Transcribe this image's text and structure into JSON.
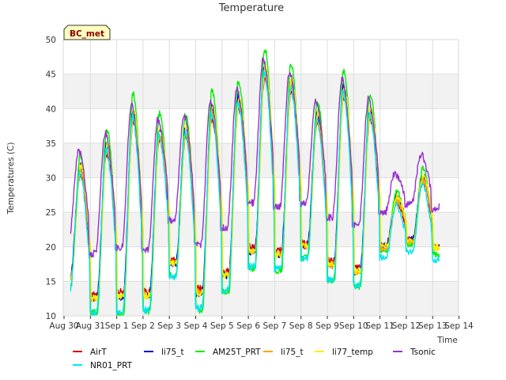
{
  "chart_data": {
    "type": "line",
    "title": "Temperature",
    "xlabel": "Time",
    "ylabel": "Temperatures (C)",
    "badge": "BC_met",
    "ylim": [
      10,
      50
    ],
    "yticks": [
      10,
      15,
      20,
      25,
      30,
      35,
      40,
      45,
      50
    ],
    "xlim": [
      0,
      15
    ],
    "xticks": [
      {
        "value": 0,
        "label": "Aug 30"
      },
      {
        "value": 1,
        "label": "Aug 31"
      },
      {
        "value": 2,
        "label": "Sep 1"
      },
      {
        "value": 3,
        "label": "Sep 2"
      },
      {
        "value": 4,
        "label": "Sep 3"
      },
      {
        "value": 5,
        "label": "Sep 4"
      },
      {
        "value": 6,
        "label": "Sep 5"
      },
      {
        "value": 7,
        "label": "Sep 6"
      },
      {
        "value": 8,
        "label": "Sep 7"
      },
      {
        "value": 9,
        "label": "Sep 8"
      },
      {
        "value": 10,
        "label": "Sep 9"
      },
      {
        "value": 11,
        "label": "Sep 10"
      },
      {
        "value": 12,
        "label": "Sep 11"
      },
      {
        "value": 13,
        "label": "Sep 12"
      },
      {
        "value": 14,
        "label": "Sep 13"
      },
      {
        "value": 15,
        "label": "Sep 14"
      }
    ],
    "grid": true,
    "legend_position": "bottom",
    "day_cycles": [
      {
        "min": 16.0,
        "max": 30.5
      },
      {
        "min": 13.0,
        "max": 33.5
      },
      {
        "min": 13.5,
        "max": 38.0
      },
      {
        "min": 13.5,
        "max": 35.5
      },
      {
        "min": 18.0,
        "max": 36.0
      },
      {
        "min": 14.0,
        "max": 38.5
      },
      {
        "min": 16.5,
        "max": 40.0
      },
      {
        "min": 20.0,
        "max": 44.5
      },
      {
        "min": 19.5,
        "max": 42.5
      },
      {
        "min": 20.5,
        "max": 38.0
      },
      {
        "min": 18.0,
        "max": 41.5
      },
      {
        "min": 17.0,
        "max": 38.5
      },
      {
        "min": 20.0,
        "max": 26.5
      },
      {
        "min": 21.0,
        "max": 29.5
      },
      {
        "min": 20.0,
        "max": 31.0
      },
      {
        "min": 19.5,
        "max": 19.5
      }
    ],
    "series": [
      {
        "name": "AirT",
        "color": "#cc0000",
        "offset": 0.0,
        "amp": 1.0,
        "phase": 0.0
      },
      {
        "name": "li75_t",
        "color": "#0000cc",
        "offset": 0.5,
        "amp": 1.1,
        "phase": 0.01
      },
      {
        "name": "AM25T_PRT",
        "color": "#00ee00",
        "offset": 0.5,
        "amp": 1.3,
        "phase": 0.0
      },
      {
        "name": "li75_t",
        "color": "#ffa500",
        "offset": 0.0,
        "amp": 1.05,
        "phase": -0.01
      },
      {
        "name": "li77_temp",
        "color": "#ffee00",
        "offset": 0.5,
        "amp": 1.1,
        "phase": -0.02
      },
      {
        "name": "Tsonic",
        "color": "#9932cc",
        "offset": 4.5,
        "amp": 0.85,
        "phase": 0.06
      },
      {
        "name": "NR01_PRT",
        "color": "#00e5ee",
        "offset": -1.0,
        "amp": 1.15,
        "phase": 0.02
      }
    ]
  }
}
